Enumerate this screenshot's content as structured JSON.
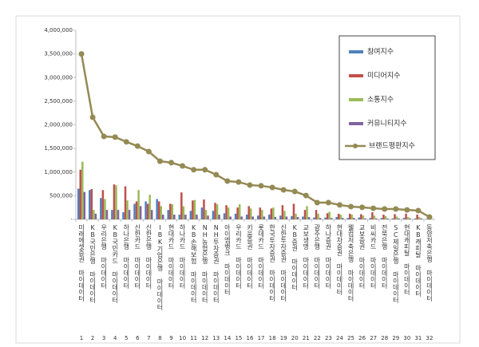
{
  "chart_data": {
    "type": "bar",
    "categories": [
      "미래에셋증권 마이데이터",
      "KB국민은행 마이데이터",
      "우리은행 마이데이터",
      "KB국민카드 마이데이터",
      "하나은행 마이데이터",
      "신한카드 마이데이터",
      "신한은행 마이데이터",
      "IBK기업은행 마이데이터",
      "현대카드 마이데이터",
      "하나카드 마이데이터",
      "KB손해보험 마이데이터",
      "NH농협은행 마이데이터",
      "NH투자증권 마이데이터",
      "아이엠뱅크 마이데이터",
      "우리카드 마이데이터",
      "키움증권 마이데이터",
      "롯데카드 마이데이터",
      "한국투자증권 마이데이터",
      "신한투자증권 마이데이터",
      "KB증권 마이데이터",
      "교보생명 마이데이터",
      "광주은행 마이데이터",
      "하나증권 마이데이터",
      "현대차증권 마이데이터",
      "웰컴저축은행 마이데이터",
      "교보증권 마이데이터",
      "비씨카드 마이데이터",
      "전북은행 마이데이터",
      "SC제일은행 마이데이터",
      "현대캐피탈 마이데이터",
      "KB캐피탈 마이데이터",
      "동양저축은행 마이데이터"
    ],
    "ranks": [
      1,
      2,
      3,
      4,
      5,
      6,
      7,
      8,
      9,
      10,
      11,
      12,
      13,
      14,
      15,
      16,
      17,
      18,
      19,
      20,
      21,
      22,
      23,
      24,
      25,
      26,
      27,
      28,
      29,
      30,
      31,
      32
    ],
    "series": [
      {
        "name": "참여지수",
        "color": "#4f81bd",
        "values": [
          650000,
          620000,
          450000,
          200000,
          150000,
          330000,
          380000,
          430000,
          200000,
          100000,
          180000,
          250000,
          180000,
          130000,
          120000,
          100000,
          80000,
          100000,
          80000,
          70000,
          60000,
          40000,
          40000,
          50000,
          30000,
          40000,
          30000,
          30000,
          20000,
          30000,
          20000,
          10000
        ]
      },
      {
        "name": "미디어지수",
        "color": "#c0504d",
        "values": [
          1050000,
          640000,
          620000,
          740000,
          700000,
          380000,
          330000,
          380000,
          330000,
          570000,
          400000,
          420000,
          350000,
          300000,
          250000,
          280000,
          250000,
          230000,
          300000,
          330000,
          200000,
          200000,
          130000,
          120000,
          120000,
          110000,
          150000,
          100000,
          110000,
          120000,
          100000,
          30000
        ]
      },
      {
        "name": "소통지수",
        "color": "#9bbb59",
        "values": [
          1220000,
          200000,
          430000,
          720000,
          400000,
          620000,
          520000,
          280000,
          320000,
          280000,
          410000,
          200000,
          320000,
          250000,
          320000,
          230000,
          200000,
          250000,
          180000,
          120000,
          280000,
          120000,
          160000,
          100000,
          100000,
          80000,
          80000,
          70000,
          60000,
          50000,
          50000,
          10000
        ]
      },
      {
        "name": "커뮤니티지수",
        "color": "#8064a2",
        "values": [
          580000,
          120000,
          200000,
          200000,
          200000,
          280000,
          200000,
          100000,
          100000,
          100000,
          100000,
          80000,
          100000,
          60000,
          60000,
          60000,
          60000,
          50000,
          60000,
          50000,
          50000,
          30000,
          30000,
          30000,
          30000,
          20000,
          20000,
          20000,
          20000,
          20000,
          20000,
          5000
        ]
      }
    ],
    "line_series": {
      "name": "브랜드평판지수",
      "color": "#948a54",
      "values": [
        3500000,
        2160000,
        1755000,
        1740000,
        1640000,
        1550000,
        1435000,
        1230000,
        1200000,
        1130000,
        1050000,
        1050000,
        945000,
        810000,
        790000,
        725000,
        710000,
        675000,
        625000,
        590000,
        505000,
        355000,
        355000,
        305000,
        270000,
        255000,
        235000,
        220000,
        220000,
        200000,
        185000,
        50000
      ]
    },
    "ylim": [
      0,
      4000000
    ],
    "yticks": [
      {
        "value": 0,
        "label": "-"
      },
      {
        "value": 500000,
        "label": "500,000"
      },
      {
        "value": 1000000,
        "label": "1,000,000"
      },
      {
        "value": 1500000,
        "label": "1,500,000"
      },
      {
        "value": 2000000,
        "label": "2,000,000"
      },
      {
        "value": 2500000,
        "label": "2,500,000"
      },
      {
        "value": 3000000,
        "label": "3,000,000"
      },
      {
        "value": 3500000,
        "label": "3,500,000"
      },
      {
        "value": 4000000,
        "label": "4,000,000"
      }
    ],
    "grid": false
  }
}
